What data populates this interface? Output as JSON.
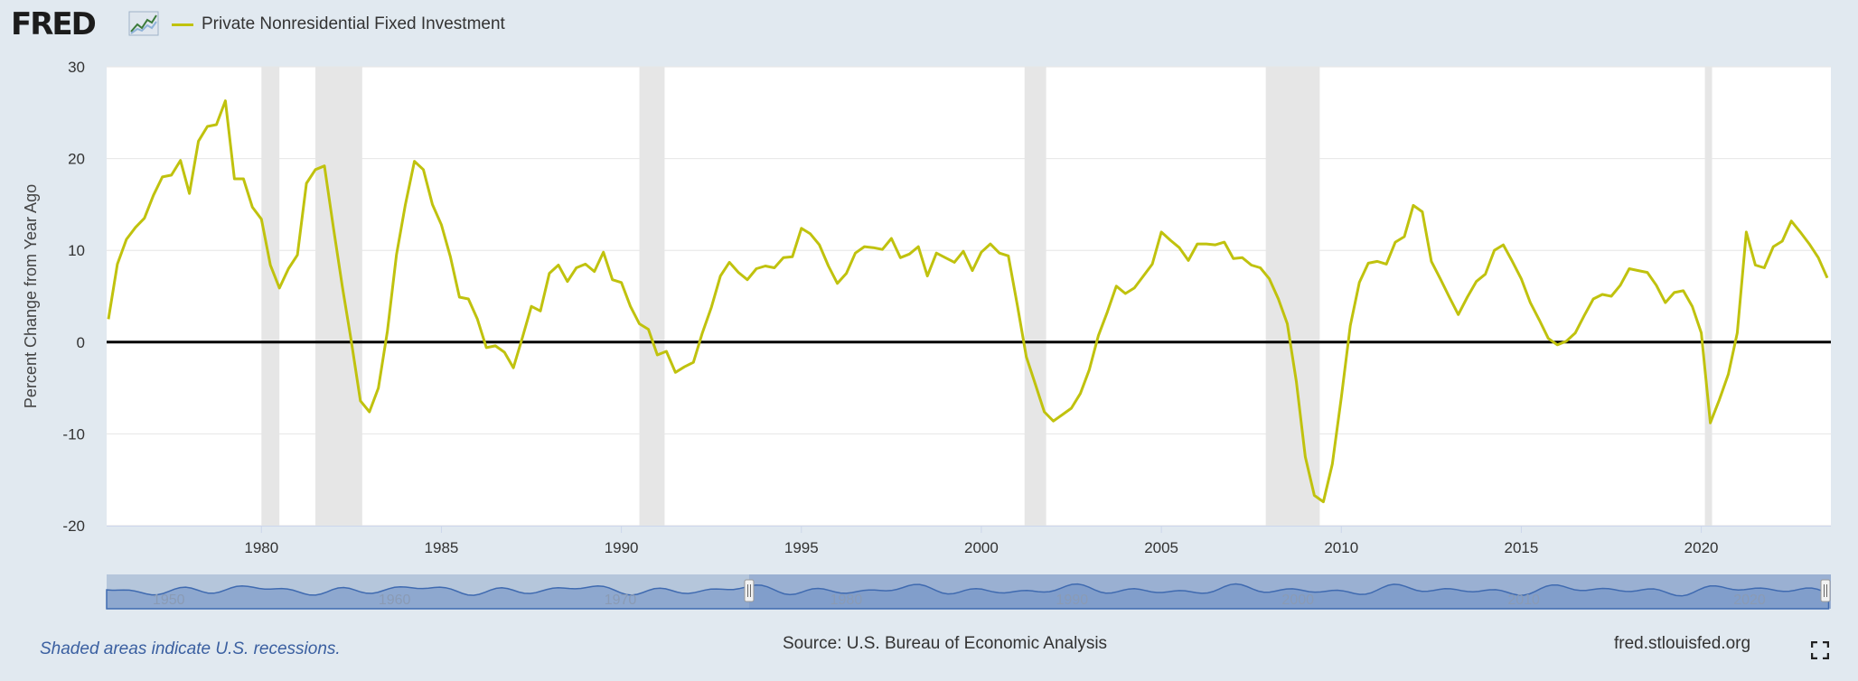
{
  "header": {
    "logo_text": "FRED",
    "logo_icon": "line-graph-icon",
    "legend_label": "Private Nonresidential Fixed Investment",
    "legend_color": "#c0c20e"
  },
  "footer": {
    "recession_note": "Shaded areas indicate U.S. recessions.",
    "source": "Source: U.S. Bureau of Economic Analysis",
    "site": "fred.stlouisfed.org",
    "fullscreen_icon": "fullscreen-icon"
  },
  "chart_data": {
    "type": "line",
    "title": "",
    "xlabel": "",
    "ylabel": "Percent Change from Year Ago",
    "xlim": [
      1975.7,
      2023.6
    ],
    "ylim": [
      -20,
      30
    ],
    "yticks": [
      30,
      20,
      10,
      0,
      -10,
      -20
    ],
    "xticks": [
      1980,
      1985,
      1990,
      1995,
      2000,
      2005,
      2010,
      2015,
      2020
    ],
    "grid": true,
    "legend": "top-left",
    "line_color": "#c0c20e",
    "recessions": [
      [
        1980.0,
        1980.5
      ],
      [
        1981.5,
        1982.8
      ],
      [
        1990.5,
        1991.2
      ],
      [
        2001.2,
        2001.8
      ],
      [
        2007.9,
        2009.4
      ],
      [
        2020.1,
        2020.3
      ]
    ],
    "series": [
      {
        "name": "Private Nonresidential Fixed Investment",
        "points": [
          [
            1975.75,
            2.5
          ],
          [
            1976.0,
            8.5
          ],
          [
            1976.25,
            11.2
          ],
          [
            1976.5,
            12.5
          ],
          [
            1976.75,
            13.5
          ],
          [
            1977.0,
            16.0
          ],
          [
            1977.25,
            18.0
          ],
          [
            1977.5,
            18.2
          ],
          [
            1977.75,
            19.8
          ],
          [
            1978.0,
            16.2
          ],
          [
            1978.25,
            21.9
          ],
          [
            1978.5,
            23.5
          ],
          [
            1978.75,
            23.7
          ],
          [
            1979.0,
            26.3
          ],
          [
            1979.25,
            17.8
          ],
          [
            1979.5,
            17.8
          ],
          [
            1979.75,
            14.7
          ],
          [
            1980.0,
            13.4
          ],
          [
            1980.25,
            8.4
          ],
          [
            1980.5,
            5.9
          ],
          [
            1980.75,
            8.0
          ],
          [
            1981.0,
            9.5
          ],
          [
            1981.25,
            17.3
          ],
          [
            1981.5,
            18.8
          ],
          [
            1981.75,
            19.2
          ],
          [
            1982.0,
            12.5
          ],
          [
            1982.25,
            6.0
          ],
          [
            1982.5,
            0.0
          ],
          [
            1982.75,
            -6.4
          ],
          [
            1983.0,
            -7.6
          ],
          [
            1983.25,
            -5.0
          ],
          [
            1983.5,
            1.2
          ],
          [
            1983.75,
            9.5
          ],
          [
            1984.0,
            15.0
          ],
          [
            1984.25,
            19.7
          ],
          [
            1984.5,
            18.8
          ],
          [
            1984.75,
            15.0
          ],
          [
            1985.0,
            12.8
          ],
          [
            1985.25,
            9.3
          ],
          [
            1985.5,
            4.9
          ],
          [
            1985.75,
            4.7
          ],
          [
            1986.0,
            2.5
          ],
          [
            1986.25,
            -0.6
          ],
          [
            1986.5,
            -0.4
          ],
          [
            1986.75,
            -1.1
          ],
          [
            1987.0,
            -2.8
          ],
          [
            1987.25,
            0.5
          ],
          [
            1987.5,
            3.9
          ],
          [
            1987.75,
            3.4
          ],
          [
            1988.0,
            7.5
          ],
          [
            1988.25,
            8.4
          ],
          [
            1988.5,
            6.6
          ],
          [
            1988.75,
            8.1
          ],
          [
            1989.0,
            8.5
          ],
          [
            1989.25,
            7.7
          ],
          [
            1989.5,
            9.8
          ],
          [
            1989.75,
            6.8
          ],
          [
            1990.0,
            6.5
          ],
          [
            1990.25,
            3.9
          ],
          [
            1990.5,
            2.0
          ],
          [
            1990.75,
            1.4
          ],
          [
            1991.0,
            -1.4
          ],
          [
            1991.25,
            -1.0
          ],
          [
            1991.5,
            -3.3
          ],
          [
            1991.75,
            -2.7
          ],
          [
            1992.0,
            -2.2
          ],
          [
            1992.25,
            1.0
          ],
          [
            1992.5,
            3.8
          ],
          [
            1992.75,
            7.2
          ],
          [
            1993.0,
            8.7
          ],
          [
            1993.25,
            7.6
          ],
          [
            1993.5,
            6.8
          ],
          [
            1993.75,
            8.0
          ],
          [
            1994.0,
            8.3
          ],
          [
            1994.25,
            8.1
          ],
          [
            1994.5,
            9.2
          ],
          [
            1994.75,
            9.3
          ],
          [
            1995.0,
            12.4
          ],
          [
            1995.25,
            11.8
          ],
          [
            1995.5,
            10.6
          ],
          [
            1995.75,
            8.3
          ],
          [
            1996.0,
            6.4
          ],
          [
            1996.25,
            7.5
          ],
          [
            1996.5,
            9.7
          ],
          [
            1996.75,
            10.4
          ],
          [
            1997.0,
            10.3
          ],
          [
            1997.25,
            10.1
          ],
          [
            1997.5,
            11.3
          ],
          [
            1997.75,
            9.2
          ],
          [
            1998.0,
            9.6
          ],
          [
            1998.25,
            10.4
          ],
          [
            1998.5,
            7.2
          ],
          [
            1998.75,
            9.7
          ],
          [
            1999.0,
            9.2
          ],
          [
            1999.25,
            8.7
          ],
          [
            1999.5,
            9.9
          ],
          [
            1999.75,
            7.8
          ],
          [
            2000.0,
            9.8
          ],
          [
            2000.25,
            10.7
          ],
          [
            2000.5,
            9.7
          ],
          [
            2000.75,
            9.4
          ],
          [
            2001.0,
            4.0
          ],
          [
            2001.25,
            -1.6
          ],
          [
            2001.5,
            -4.6
          ],
          [
            2001.75,
            -7.6
          ],
          [
            2002.0,
            -8.6
          ],
          [
            2002.25,
            -7.9
          ],
          [
            2002.5,
            -7.2
          ],
          [
            2002.75,
            -5.6
          ],
          [
            2003.0,
            -3.0
          ],
          [
            2003.25,
            0.7
          ],
          [
            2003.5,
            3.3
          ],
          [
            2003.75,
            6.1
          ],
          [
            2004.0,
            5.3
          ],
          [
            2004.25,
            5.9
          ],
          [
            2004.5,
            7.2
          ],
          [
            2004.75,
            8.5
          ],
          [
            2005.0,
            12.0
          ],
          [
            2005.25,
            11.1
          ],
          [
            2005.5,
            10.3
          ],
          [
            2005.75,
            8.9
          ],
          [
            2006.0,
            10.7
          ],
          [
            2006.25,
            10.7
          ],
          [
            2006.5,
            10.6
          ],
          [
            2006.75,
            10.9
          ],
          [
            2007.0,
            9.1
          ],
          [
            2007.25,
            9.2
          ],
          [
            2007.5,
            8.4
          ],
          [
            2007.75,
            8.1
          ],
          [
            2008.0,
            6.9
          ],
          [
            2008.25,
            4.7
          ],
          [
            2008.5,
            2.0
          ],
          [
            2008.75,
            -4.3
          ],
          [
            2009.0,
            -12.5
          ],
          [
            2009.25,
            -16.7
          ],
          [
            2009.5,
            -17.4
          ],
          [
            2009.75,
            -13.3
          ],
          [
            2010.0,
            -6.0
          ],
          [
            2010.25,
            1.8
          ],
          [
            2010.5,
            6.5
          ],
          [
            2010.75,
            8.6
          ],
          [
            2011.0,
            8.8
          ],
          [
            2011.25,
            8.5
          ],
          [
            2011.5,
            10.9
          ],
          [
            2011.75,
            11.5
          ],
          [
            2012.0,
            14.9
          ],
          [
            2012.25,
            14.2
          ],
          [
            2012.5,
            8.8
          ],
          [
            2012.75,
            6.9
          ],
          [
            2013.0,
            4.9
          ],
          [
            2013.25,
            3.0
          ],
          [
            2013.5,
            4.9
          ],
          [
            2013.75,
            6.6
          ],
          [
            2014.0,
            7.4
          ],
          [
            2014.25,
            10.0
          ],
          [
            2014.5,
            10.6
          ],
          [
            2014.75,
            8.8
          ],
          [
            2015.0,
            6.9
          ],
          [
            2015.25,
            4.3
          ],
          [
            2015.5,
            2.4
          ],
          [
            2015.75,
            0.4
          ],
          [
            2016.0,
            -0.3
          ],
          [
            2016.25,
            0.1
          ],
          [
            2016.5,
            1.0
          ],
          [
            2016.75,
            2.9
          ],
          [
            2017.0,
            4.7
          ],
          [
            2017.25,
            5.2
          ],
          [
            2017.5,
            5.0
          ],
          [
            2017.75,
            6.2
          ],
          [
            2018.0,
            8.0
          ],
          [
            2018.25,
            7.8
          ],
          [
            2018.5,
            7.6
          ],
          [
            2018.75,
            6.2
          ],
          [
            2019.0,
            4.3
          ],
          [
            2019.25,
            5.4
          ],
          [
            2019.5,
            5.6
          ],
          [
            2019.75,
            3.9
          ],
          [
            2020.0,
            1.0
          ],
          [
            2020.25,
            -8.8
          ],
          [
            2020.5,
            -6.3
          ],
          [
            2020.75,
            -3.5
          ],
          [
            2021.0,
            1.0
          ],
          [
            2021.25,
            12.0
          ],
          [
            2021.5,
            8.4
          ],
          [
            2021.75,
            8.1
          ],
          [
            2022.0,
            10.4
          ],
          [
            2022.25,
            11.0
          ],
          [
            2022.5,
            13.2
          ],
          [
            2022.75,
            12.0
          ],
          [
            2023.0,
            10.7
          ],
          [
            2023.25,
            9.2
          ],
          [
            2023.5,
            7.0
          ]
        ]
      }
    ],
    "navigator": {
      "x_labels": [
        "1950",
        "1960",
        "1970",
        "1980",
        "1990",
        "2000",
        "2010",
        "2020"
      ],
      "range_start": 1947.25,
      "range_end": 2023.6,
      "selected_start": 1975.7,
      "selected_end": 2023.6
    }
  }
}
